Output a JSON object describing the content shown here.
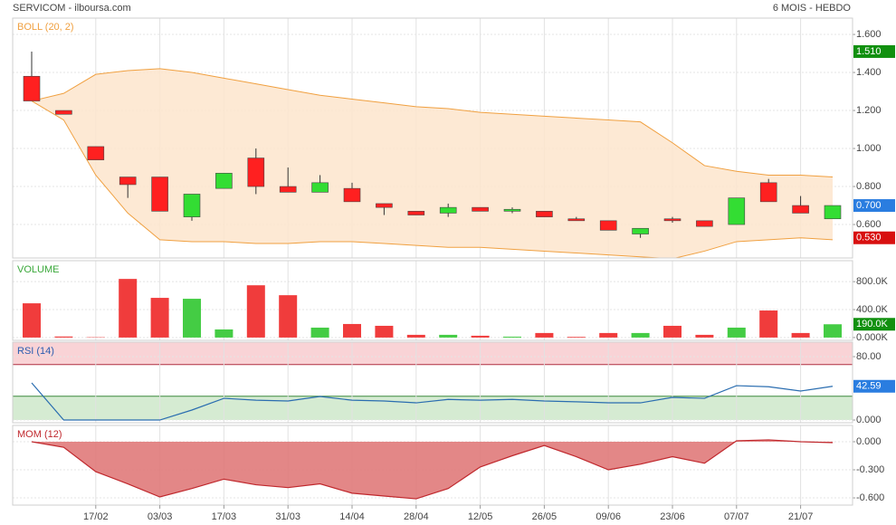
{
  "header": {
    "title": "SERVICOM - ilboursa.com",
    "period": "6 MOIS - HEBDO"
  },
  "chart_data": [
    {
      "type": "candlestick",
      "title": "BOLL (20, 2)",
      "title_color": "#f0a040",
      "open": [
        1.38,
        1.2,
        1.01,
        0.85,
        0.85,
        0.64,
        0.79,
        0.95,
        0.8,
        0.77,
        0.79,
        0.71,
        0.67,
        0.66,
        0.69,
        0.67,
        0.67,
        0.63,
        0.62,
        0.55,
        0.63,
        0.62,
        0.6,
        0.82,
        0.7,
        0.63
      ],
      "high": [
        1.51,
        1.2,
        1.01,
        0.85,
        0.85,
        0.76,
        0.87,
        1.0,
        0.9,
        0.86,
        0.82,
        0.71,
        0.67,
        0.71,
        0.69,
        0.69,
        0.67,
        0.64,
        0.62,
        0.58,
        0.64,
        0.62,
        0.74,
        0.84,
        0.75,
        0.7
      ],
      "low": [
        1.25,
        1.18,
        0.94,
        0.74,
        0.67,
        0.62,
        0.79,
        0.76,
        0.77,
        0.77,
        0.72,
        0.65,
        0.65,
        0.64,
        0.67,
        0.66,
        0.64,
        0.62,
        0.57,
        0.53,
        0.61,
        0.59,
        0.6,
        0.72,
        0.66,
        0.63
      ],
      "close": [
        1.25,
        1.18,
        0.94,
        0.81,
        0.67,
        0.76,
        0.87,
        0.8,
        0.77,
        0.82,
        0.72,
        0.69,
        0.65,
        0.69,
        0.67,
        0.68,
        0.64,
        0.62,
        0.57,
        0.58,
        0.62,
        0.59,
        0.74,
        0.72,
        0.66,
        0.7
      ],
      "upper_band": [
        1.25,
        1.29,
        1.39,
        1.41,
        1.42,
        1.4,
        1.37,
        1.34,
        1.31,
        1.28,
        1.26,
        1.24,
        1.22,
        1.21,
        1.19,
        1.18,
        1.17,
        1.16,
        1.15,
        1.14,
        1.03,
        0.91,
        0.88,
        0.86,
        0.86,
        0.85
      ],
      "lower_band": [
        1.25,
        1.15,
        0.86,
        0.66,
        0.52,
        0.51,
        0.51,
        0.5,
        0.5,
        0.51,
        0.51,
        0.5,
        0.49,
        0.48,
        0.48,
        0.47,
        0.46,
        0.45,
        0.44,
        0.43,
        0.42,
        0.46,
        0.51,
        0.52,
        0.53,
        0.52
      ],
      "band_color": "#f0a040",
      "band_fill": "#fde5cc",
      "up_color": "#33dd33",
      "down_color": "#ff2020",
      "ylim": [
        0.424,
        1.686
      ],
      "yticks": [
        {
          "value": 0.6,
          "label": "0.600"
        },
        {
          "value": 0.8,
          "label": "0.800"
        },
        {
          "value": 1.0,
          "label": "1.000"
        },
        {
          "value": 1.2,
          "label": "1.200"
        },
        {
          "value": 1.4,
          "label": "1.400"
        },
        {
          "value": 1.6,
          "label": "1.600"
        }
      ],
      "markers": [
        {
          "value": 1.51,
          "label": "1.510",
          "color": "#11900f"
        },
        {
          "value": 0.7,
          "label": "0.700",
          "color": "#2a7de0"
        },
        {
          "value": 0.53,
          "label": "0.530",
          "color": "#d80f0f"
        }
      ]
    },
    {
      "type": "bar",
      "title": "VOLUME",
      "title_color": "#3aa83a",
      "values": [
        490000,
        15000,
        5000,
        839000,
        568000,
        555000,
        116000,
        748000,
        606000,
        142000,
        194000,
        168000,
        39000,
        39000,
        26000,
        13000,
        65000,
        10000,
        65000,
        65000,
        168000,
        39000,
        142000,
        387000,
        65000,
        190000
      ],
      "up_color": "#44cc44",
      "down_color": "#f03c3c",
      "ylim": [
        -40000,
        1100000
      ],
      "yticks": [
        {
          "value": 0,
          "label": "0.000K"
        },
        {
          "value": 400000,
          "label": "400.0K"
        },
        {
          "value": 800000,
          "label": "800.0K"
        }
      ],
      "markers": [
        {
          "value": 190000,
          "label": "190.0K",
          "color": "#11900f"
        }
      ]
    },
    {
      "type": "line",
      "title": "RSI (14)",
      "title_color": "#2a5db0",
      "color": "#2a6db0",
      "values": [
        46.9,
        0,
        0,
        0,
        0,
        12.6,
        27.4,
        25,
        24,
        29.7,
        25,
        24,
        21.7,
        26,
        25,
        26,
        24,
        23,
        21.7,
        21.7,
        28.6,
        27.4,
        43.4,
        42,
        36.6,
        42.59
      ],
      "zones": [
        {
          "from": 70,
          "to": 100,
          "color": "#f9d3d6",
          "line": "#b03040"
        },
        {
          "from": 0,
          "to": 30,
          "color": "#d5ebd2",
          "line": "#3a8a3a"
        }
      ],
      "ylim": [
        -3.4,
        98.3
      ],
      "yticks": [
        {
          "value": 0,
          "label": "0.000"
        },
        {
          "value": 80,
          "label": "80.00"
        }
      ],
      "markers": [
        {
          "value": 42.59,
          "label": "42.59",
          "color": "#2a7de0"
        }
      ]
    },
    {
      "type": "area",
      "title": "MOM (12)",
      "title_color": "#c0282d",
      "color": "#c0282d",
      "fill": "#e07a7a",
      "categories": [
        null,
        null,
        "17/02",
        null,
        "03/03",
        null,
        "17/03",
        null,
        "31/03",
        null,
        "14/04",
        null,
        "28/04",
        null,
        "12/05",
        null,
        "26/05",
        null,
        "09/06",
        null,
        "23/06",
        null,
        "07/07",
        null,
        "21/07",
        null
      ],
      "values": [
        0,
        -0.06,
        -0.32,
        -0.45,
        -0.59,
        -0.5,
        -0.4,
        -0.46,
        -0.49,
        -0.45,
        -0.55,
        -0.58,
        -0.61,
        -0.5,
        -0.27,
        -0.15,
        -0.04,
        -0.16,
        -0.3,
        -0.24,
        -0.16,
        -0.23,
        0.01,
        0.02,
        0,
        -0.01
      ],
      "ylim": [
        -0.677,
        0.174
      ],
      "yticks": [
        {
          "value": -0.6,
          "label": "-0.600"
        },
        {
          "value": -0.3,
          "label": "-0.300"
        },
        {
          "value": 0,
          "label": "0.000"
        }
      ]
    }
  ]
}
